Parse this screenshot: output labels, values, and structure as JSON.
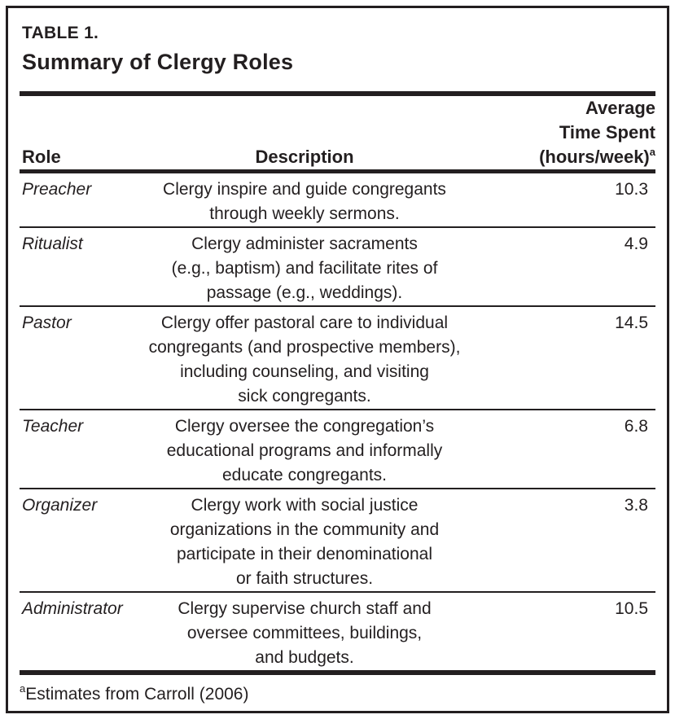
{
  "colors": {
    "text": "#231f20",
    "background": "#ffffff"
  },
  "table": {
    "label": "TABLE 1.",
    "title": "Summary of Clergy Roles",
    "columns": {
      "role": "Role",
      "description": "Description",
      "hours_header": {
        "line1": "Average",
        "line2": "Time Spent",
        "line3": "(hours/week)",
        "superscript": "a"
      }
    },
    "rows": [
      {
        "role": "Preacher",
        "description": "Clergy inspire and guide congregants\nthrough weekly sermons.",
        "hours": "10.3"
      },
      {
        "role": "Ritualist",
        "description": "Clergy administer sacraments\n(e.g., baptism) and facilitate rites of\npassage (e.g., weddings).",
        "hours": "4.9"
      },
      {
        "role": "Pastor",
        "description": "Clergy offer pastoral care to individual\ncongregants (and prospective members),\nincluding counseling, and visiting\nsick congregants.",
        "hours": "14.5"
      },
      {
        "role": "Teacher",
        "description": "Clergy oversee the congregation’s\neducational programs and informally\neducate congregants.",
        "hours": "6.8"
      },
      {
        "role": "Organizer",
        "description": "Clergy work with social justice\norganizations in the community and\nparticipate in their denominational\nor faith structures.",
        "hours": "3.8"
      },
      {
        "role": "Administrator",
        "description": "Clergy supervise church staff and\noversee committees, buildings,\nand budgets.",
        "hours": "10.5"
      }
    ],
    "footnote": {
      "superscript": "a",
      "text": "Estimates from Carroll (2006)"
    }
  }
}
